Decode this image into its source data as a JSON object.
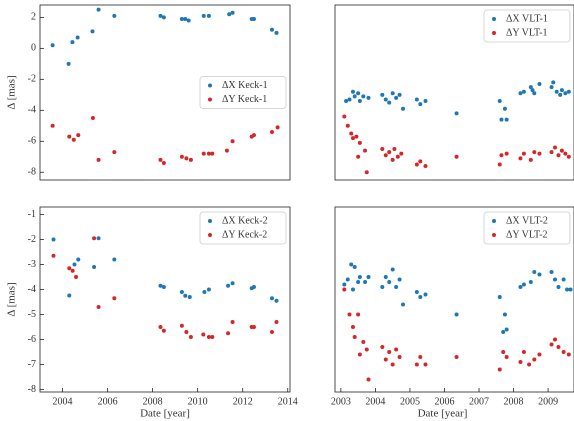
{
  "chart_data": [
    {
      "type": "scatter",
      "ylabel": "Δ [mas]",
      "xlim": [
        2003,
        2014.1
      ],
      "ylim": [
        -8.5,
        2.8
      ],
      "yticks": [
        -8,
        -6,
        -4,
        -2,
        0,
        2
      ],
      "legend": "center right",
      "series": [
        {
          "name": "ΔX Keck-1",
          "color": "#1f77b4",
          "x": [
            2003.56,
            2004.27,
            2004.44,
            2004.67,
            2005.33,
            2005.6,
            2006.3,
            2008.35,
            2008.5,
            2009.3,
            2009.45,
            2009.6,
            2010.27,
            2010.5,
            2011.4,
            2011.55,
            2012.4,
            2012.5,
            2013.3,
            2013.5
          ],
          "y": [
            0.2,
            -1.0,
            0.4,
            0.7,
            1.1,
            2.5,
            2.1,
            2.1,
            2.0,
            1.9,
            1.9,
            1.8,
            2.1,
            2.1,
            2.2,
            2.3,
            1.9,
            1.9,
            1.2,
            1.0
          ]
        },
        {
          "name": "ΔY Keck-1",
          "color": "#d62728",
          "x": [
            2003.56,
            2004.3,
            2004.5,
            2004.7,
            2005.35,
            2005.6,
            2006.3,
            2008.35,
            2008.5,
            2009.3,
            2009.5,
            2009.7,
            2010.27,
            2010.5,
            2010.65,
            2011.3,
            2011.55,
            2012.4,
            2012.5,
            2013.3,
            2013.55
          ],
          "y": [
            -5.0,
            -5.7,
            -5.9,
            -5.6,
            -4.5,
            -7.2,
            -6.7,
            -7.2,
            -7.4,
            -7.0,
            -7.1,
            -7.2,
            -6.8,
            -6.8,
            -6.8,
            -6.6,
            -6.0,
            -5.7,
            -5.6,
            -5.4,
            -5.1
          ]
        }
      ]
    },
    {
      "type": "scatter",
      "xlim": [
        2002.83,
        2009.75
      ],
      "ylim": [
        -8.5,
        2.8
      ],
      "legend": "upper right",
      "series": [
        {
          "name": "ΔX VLT-1",
          "color": "#1f77b4",
          "x": [
            2003.15,
            2003.25,
            2003.35,
            2003.4,
            2003.5,
            2003.55,
            2003.65,
            2003.8,
            2004.2,
            2004.3,
            2004.4,
            2004.5,
            2004.6,
            2004.7,
            2004.8,
            2005.2,
            2005.3,
            2005.45,
            2006.35,
            2007.6,
            2007.65,
            2007.75,
            2007.8,
            2008.2,
            2008.3,
            2008.5,
            2008.55,
            2008.6,
            2008.75,
            2009.1,
            2009.15,
            2009.25,
            2009.35,
            2009.4,
            2009.5,
            2009.6
          ],
          "y": [
            -3.4,
            -3.3,
            -2.8,
            -3.1,
            -2.9,
            -3.4,
            -3.1,
            -3.2,
            -3.0,
            -3.3,
            -3.5,
            -2.9,
            -3.2,
            -3.0,
            -3.9,
            -3.3,
            -3.6,
            -3.4,
            -4.2,
            -3.4,
            -4.6,
            -3.9,
            -4.6,
            -2.9,
            -2.8,
            -2.5,
            -2.7,
            -2.9,
            -2.3,
            -2.5,
            -2.2,
            -2.8,
            -3.0,
            -2.7,
            -2.9,
            -2.8
          ]
        },
        {
          "name": "ΔY VLT-1",
          "color": "#d62728",
          "x": [
            2003.1,
            2003.2,
            2003.3,
            2003.35,
            2003.45,
            2003.5,
            2003.55,
            2003.7,
            2003.75,
            2004.2,
            2004.3,
            2004.4,
            2004.5,
            2004.55,
            2004.65,
            2004.75,
            2005.2,
            2005.3,
            2005.45,
            2006.35,
            2007.6,
            2007.65,
            2007.8,
            2008.2,
            2008.3,
            2008.5,
            2008.6,
            2008.75,
            2009.1,
            2009.2,
            2009.3,
            2009.4,
            2009.5,
            2009.6
          ],
          "y": [
            -4.4,
            -5.0,
            -5.5,
            -5.8,
            -5.7,
            -7.0,
            -6.1,
            -6.6,
            -8.0,
            -6.5,
            -6.9,
            -6.7,
            -7.2,
            -6.5,
            -7.0,
            -6.8,
            -7.5,
            -7.3,
            -7.6,
            -7.0,
            -7.5,
            -6.9,
            -6.8,
            -7.1,
            -6.8,
            -7.2,
            -6.7,
            -6.8,
            -6.7,
            -6.4,
            -6.9,
            -6.6,
            -6.8,
            -7.0
          ]
        }
      ]
    },
    {
      "type": "scatter",
      "ylabel": "Δ [mas]",
      "xlabel": "Date [year]",
      "xlim": [
        2003,
        2014.1
      ],
      "ylim": [
        -8.1,
        -0.7
      ],
      "xticks": [
        2004,
        2006,
        2008,
        2010,
        2012,
        2014
      ],
      "yticks": [
        -8,
        -7,
        -6,
        -5,
        -4,
        -3,
        -2,
        -1
      ],
      "legend": "upper right",
      "series": [
        {
          "name": "ΔX Keck-2",
          "color": "#1f77b4",
          "x": [
            2003.6,
            2004.3,
            2004.53,
            2004.7,
            2005.4,
            2005.6,
            2006.3,
            2008.35,
            2008.5,
            2009.3,
            2009.45,
            2009.65,
            2010.3,
            2010.5,
            2011.35,
            2011.55,
            2012.4,
            2012.5,
            2013.3,
            2013.5
          ],
          "y": [
            -2.0,
            -4.24,
            -3.0,
            -2.8,
            -3.1,
            -1.95,
            -2.8,
            -3.85,
            -3.9,
            -4.1,
            -4.25,
            -4.3,
            -4.1,
            -4.0,
            -3.85,
            -3.75,
            -3.95,
            -3.9,
            -4.35,
            -4.45
          ]
        },
        {
          "name": "ΔY Keck-2",
          "color": "#d62728",
          "x": [
            2003.6,
            2004.3,
            2004.45,
            2004.6,
            2005.4,
            2005.6,
            2006.3,
            2008.35,
            2008.5,
            2009.3,
            2009.5,
            2009.7,
            2010.25,
            2010.5,
            2010.65,
            2011.35,
            2011.55,
            2012.4,
            2012.5,
            2013.3,
            2013.5
          ],
          "y": [
            -2.65,
            -3.15,
            -3.25,
            -3.5,
            -1.95,
            -4.7,
            -4.35,
            -5.5,
            -5.65,
            -5.45,
            -5.7,
            -5.9,
            -5.8,
            -5.9,
            -5.9,
            -5.75,
            -5.3,
            -5.5,
            -5.5,
            -5.7,
            -5.3
          ]
        }
      ]
    },
    {
      "type": "scatter",
      "xlabel": "Date [year]",
      "xlim": [
        2002.83,
        2009.75
      ],
      "ylim": [
        -8.1,
        -0.7
      ],
      "xticks": [
        2003,
        2004,
        2005,
        2006,
        2007,
        2008,
        2009
      ],
      "legend": "upper right",
      "series": [
        {
          "name": "ΔX VLT-2",
          "color": "#1f77b4",
          "x": [
            2003.1,
            2003.2,
            2003.3,
            2003.35,
            2003.4,
            2003.5,
            2003.55,
            2003.7,
            2003.8,
            2004.2,
            2004.3,
            2004.4,
            2004.5,
            2004.6,
            2004.7,
            2004.8,
            2005.2,
            2005.3,
            2005.45,
            2006.35,
            2007.6,
            2007.7,
            2007.75,
            2007.8,
            2008.2,
            2008.3,
            2008.5,
            2008.6,
            2008.75,
            2009.1,
            2009.2,
            2009.3,
            2009.45,
            2009.55,
            2009.65
          ],
          "y": [
            -3.8,
            -3.6,
            -3.0,
            -4.0,
            -3.1,
            -3.7,
            -3.5,
            -3.7,
            -3.5,
            -3.9,
            -3.5,
            -3.7,
            -3.2,
            -3.9,
            -3.6,
            -4.6,
            -4.1,
            -4.3,
            -4.2,
            -5.0,
            -4.3,
            -5.7,
            -5.0,
            -5.6,
            -3.9,
            -3.8,
            -3.7,
            -3.3,
            -3.4,
            -3.3,
            -3.6,
            -3.9,
            -3.6,
            -4.0,
            -4.0
          ]
        },
        {
          "name": "ΔY VLT-2",
          "color": "#d62728",
          "x": [
            2003.1,
            2003.25,
            2003.35,
            2003.4,
            2003.5,
            2003.55,
            2003.65,
            2003.75,
            2003.8,
            2004.2,
            2004.3,
            2004.4,
            2004.5,
            2004.6,
            2004.7,
            2005.2,
            2005.3,
            2005.45,
            2006.35,
            2007.6,
            2007.7,
            2007.8,
            2008.2,
            2008.3,
            2008.45,
            2008.6,
            2008.75,
            2009.1,
            2009.2,
            2009.3,
            2009.45,
            2009.6
          ],
          "y": [
            -4.0,
            -5.0,
            -5.5,
            -5.9,
            -5.0,
            -6.6,
            -6.1,
            -6.4,
            -7.6,
            -6.3,
            -6.8,
            -6.5,
            -7.0,
            -6.4,
            -6.7,
            -7.0,
            -6.7,
            -7.0,
            -6.7,
            -7.2,
            -6.5,
            -6.7,
            -6.9,
            -6.5,
            -7.0,
            -6.8,
            -6.6,
            -6.2,
            -6.0,
            -6.3,
            -6.5,
            -6.6
          ]
        }
      ]
    }
  ]
}
